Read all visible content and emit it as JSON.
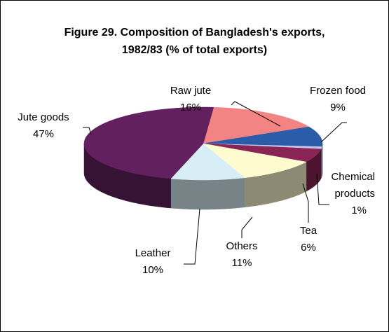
{
  "chart_data": {
    "type": "pie",
    "title": "Figure 29. Composition of Bangladesh's exports, 1982/83 (% of total exports)",
    "categories": [
      "Raw jute",
      "Frozen food",
      "Chemical products",
      "Tea",
      "Others",
      "Leather",
      "Jute goods"
    ],
    "values": [
      16,
      9,
      1,
      6,
      11,
      10,
      47
    ],
    "value_labels": [
      "16%",
      "9%",
      "1%",
      "6%",
      "11%",
      "10%",
      "47%"
    ],
    "colors": [
      "#f28484",
      "#2a5caa",
      "#c8c8e8",
      "#8a2455",
      "#fffbd0",
      "#d8eef6",
      "#62205f"
    ],
    "three_d": true
  }
}
